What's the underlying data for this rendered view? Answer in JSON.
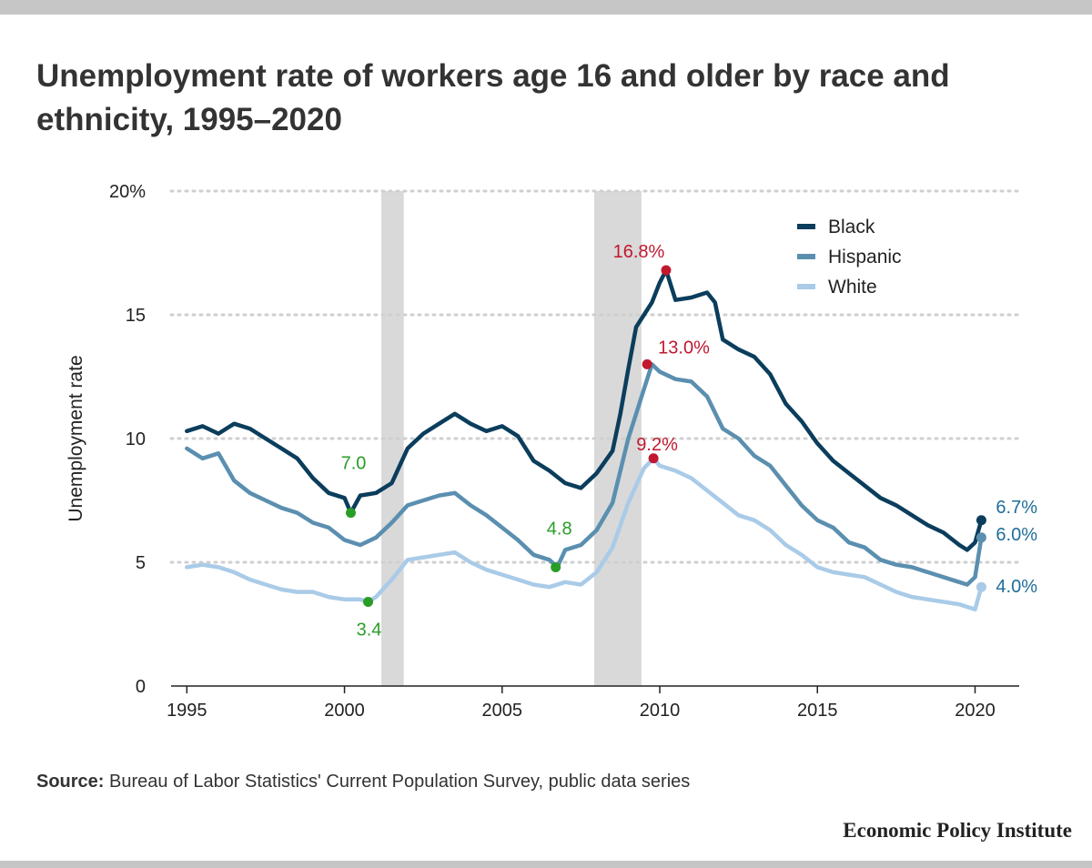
{
  "title": "Unemployment rate of workers age 16 and older by race and ethnicity, 1995–2020",
  "source": {
    "label": "Source:",
    "text": "Bureau of Labor Statistics' Current Population Survey, public data series"
  },
  "brand": "Economic Policy Institute",
  "colors": {
    "black": "#0b3d5c",
    "hispanic": "#5b8fb0",
    "white": "#a9cbe8",
    "recession": "#d9d9d9",
    "peak": "#c0182e",
    "trough": "#2a9d27",
    "end": "#1f6d99"
  },
  "chart_data": {
    "type": "line",
    "ylabel": "Unemployment rate",
    "xlabel": "",
    "ylim": [
      0,
      20
    ],
    "xlim": [
      1994.5,
      2021.4
    ],
    "yticks": [
      {
        "value": 0,
        "label": "0"
      },
      {
        "value": 5,
        "label": "5"
      },
      {
        "value": 10,
        "label": "10"
      },
      {
        "value": 15,
        "label": "15"
      },
      {
        "value": 20,
        "label": "20%"
      }
    ],
    "xticks": [
      {
        "value": 1995,
        "label": "1995"
      },
      {
        "value": 2000,
        "label": "2000"
      },
      {
        "value": 2005,
        "label": "2005"
      },
      {
        "value": 2010,
        "label": "2010"
      },
      {
        "value": 2015,
        "label": "2015"
      },
      {
        "value": 2020,
        "label": "2020"
      }
    ],
    "legend_position": "top-right",
    "grid": "horizontal-dotted",
    "recessions": [
      [
        2001.17,
        2001.88
      ],
      [
        2007.92,
        2009.42
      ]
    ],
    "series": [
      {
        "name": "Black",
        "points": [
          [
            1995.0,
            10.3
          ],
          [
            1995.5,
            10.5
          ],
          [
            1996.0,
            10.2
          ],
          [
            1996.5,
            10.6
          ],
          [
            1997.0,
            10.4
          ],
          [
            1997.5,
            10.0
          ],
          [
            1998.0,
            9.6
          ],
          [
            1998.5,
            9.2
          ],
          [
            1999.0,
            8.4
          ],
          [
            1999.5,
            7.8
          ],
          [
            2000.0,
            7.6
          ],
          [
            2000.2,
            7.0
          ],
          [
            2000.5,
            7.7
          ],
          [
            2001.0,
            7.8
          ],
          [
            2001.5,
            8.2
          ],
          [
            2002.0,
            9.6
          ],
          [
            2002.5,
            10.2
          ],
          [
            2003.0,
            10.6
          ],
          [
            2003.5,
            11.0
          ],
          [
            2004.0,
            10.6
          ],
          [
            2004.5,
            10.3
          ],
          [
            2005.0,
            10.5
          ],
          [
            2005.5,
            10.1
          ],
          [
            2006.0,
            9.1
          ],
          [
            2006.5,
            8.7
          ],
          [
            2007.0,
            8.2
          ],
          [
            2007.5,
            8.0
          ],
          [
            2008.0,
            8.6
          ],
          [
            2008.5,
            9.5
          ],
          [
            2008.75,
            11.0
          ],
          [
            2009.0,
            12.8
          ],
          [
            2009.25,
            14.5
          ],
          [
            2009.5,
            15.0
          ],
          [
            2009.75,
            15.5
          ],
          [
            2010.0,
            16.3
          ],
          [
            2010.2,
            16.8
          ],
          [
            2010.5,
            15.6
          ],
          [
            2011.0,
            15.7
          ],
          [
            2011.5,
            15.9
          ],
          [
            2011.75,
            15.5
          ],
          [
            2012.0,
            14.0
          ],
          [
            2012.5,
            13.6
          ],
          [
            2013.0,
            13.3
          ],
          [
            2013.5,
            12.6
          ],
          [
            2014.0,
            11.4
          ],
          [
            2014.5,
            10.7
          ],
          [
            2015.0,
            9.8
          ],
          [
            2015.5,
            9.1
          ],
          [
            2016.0,
            8.6
          ],
          [
            2016.5,
            8.1
          ],
          [
            2017.0,
            7.6
          ],
          [
            2017.5,
            7.3
          ],
          [
            2018.0,
            6.9
          ],
          [
            2018.5,
            6.5
          ],
          [
            2019.0,
            6.2
          ],
          [
            2019.5,
            5.7
          ],
          [
            2019.75,
            5.5
          ],
          [
            2020.0,
            5.8
          ],
          [
            2020.2,
            6.7
          ]
        ]
      },
      {
        "name": "Hispanic",
        "points": [
          [
            1995.0,
            9.6
          ],
          [
            1995.5,
            9.2
          ],
          [
            1996.0,
            9.4
          ],
          [
            1996.5,
            8.3
          ],
          [
            1997.0,
            7.8
          ],
          [
            1997.5,
            7.5
          ],
          [
            1998.0,
            7.2
          ],
          [
            1998.5,
            7.0
          ],
          [
            1999.0,
            6.6
          ],
          [
            1999.5,
            6.4
          ],
          [
            2000.0,
            5.9
          ],
          [
            2000.5,
            5.7
          ],
          [
            2001.0,
            6.0
          ],
          [
            2001.5,
            6.6
          ],
          [
            2002.0,
            7.3
          ],
          [
            2002.5,
            7.5
          ],
          [
            2003.0,
            7.7
          ],
          [
            2003.5,
            7.8
          ],
          [
            2004.0,
            7.3
          ],
          [
            2004.5,
            6.9
          ],
          [
            2005.0,
            6.4
          ],
          [
            2005.5,
            5.9
          ],
          [
            2006.0,
            5.3
          ],
          [
            2006.5,
            5.1
          ],
          [
            2006.75,
            4.8
          ],
          [
            2007.0,
            5.5
          ],
          [
            2007.5,
            5.7
          ],
          [
            2008.0,
            6.3
          ],
          [
            2008.5,
            7.4
          ],
          [
            2009.0,
            10.0
          ],
          [
            2009.5,
            12.0
          ],
          [
            2009.75,
            13.0
          ],
          [
            2010.0,
            12.7
          ],
          [
            2010.5,
            12.4
          ],
          [
            2011.0,
            12.3
          ],
          [
            2011.5,
            11.7
          ],
          [
            2012.0,
            10.4
          ],
          [
            2012.5,
            10.0
          ],
          [
            2013.0,
            9.3
          ],
          [
            2013.5,
            8.9
          ],
          [
            2014.0,
            8.1
          ],
          [
            2014.5,
            7.3
          ],
          [
            2015.0,
            6.7
          ],
          [
            2015.5,
            6.4
          ],
          [
            2016.0,
            5.8
          ],
          [
            2016.5,
            5.6
          ],
          [
            2017.0,
            5.1
          ],
          [
            2017.5,
            4.9
          ],
          [
            2018.0,
            4.8
          ],
          [
            2018.5,
            4.6
          ],
          [
            2019.0,
            4.4
          ],
          [
            2019.5,
            4.2
          ],
          [
            2019.75,
            4.1
          ],
          [
            2020.0,
            4.4
          ],
          [
            2020.2,
            6.0
          ]
        ]
      },
      {
        "name": "White",
        "points": [
          [
            1995.0,
            4.8
          ],
          [
            1995.5,
            4.9
          ],
          [
            1996.0,
            4.8
          ],
          [
            1996.5,
            4.6
          ],
          [
            1997.0,
            4.3
          ],
          [
            1997.5,
            4.1
          ],
          [
            1998.0,
            3.9
          ],
          [
            1998.5,
            3.8
          ],
          [
            1999.0,
            3.8
          ],
          [
            1999.5,
            3.6
          ],
          [
            2000.0,
            3.5
          ],
          [
            2000.5,
            3.5
          ],
          [
            2000.75,
            3.4
          ],
          [
            2001.0,
            3.6
          ],
          [
            2001.5,
            4.3
          ],
          [
            2002.0,
            5.1
          ],
          [
            2002.5,
            5.2
          ],
          [
            2003.0,
            5.3
          ],
          [
            2003.5,
            5.4
          ],
          [
            2004.0,
            5.0
          ],
          [
            2004.5,
            4.7
          ],
          [
            2005.0,
            4.5
          ],
          [
            2005.5,
            4.3
          ],
          [
            2006.0,
            4.1
          ],
          [
            2006.5,
            4.0
          ],
          [
            2007.0,
            4.2
          ],
          [
            2007.5,
            4.1
          ],
          [
            2008.0,
            4.6
          ],
          [
            2008.5,
            5.6
          ],
          [
            2009.0,
            7.4
          ],
          [
            2009.5,
            8.8
          ],
          [
            2009.8,
            9.2
          ],
          [
            2010.0,
            8.9
          ],
          [
            2010.5,
            8.7
          ],
          [
            2011.0,
            8.4
          ],
          [
            2011.5,
            7.9
          ],
          [
            2012.0,
            7.4
          ],
          [
            2012.5,
            6.9
          ],
          [
            2013.0,
            6.7
          ],
          [
            2013.5,
            6.3
          ],
          [
            2014.0,
            5.7
          ],
          [
            2014.5,
            5.3
          ],
          [
            2015.0,
            4.8
          ],
          [
            2015.5,
            4.6
          ],
          [
            2016.0,
            4.5
          ],
          [
            2016.5,
            4.4
          ],
          [
            2017.0,
            4.1
          ],
          [
            2017.5,
            3.8
          ],
          [
            2018.0,
            3.6
          ],
          [
            2018.5,
            3.5
          ],
          [
            2019.0,
            3.4
          ],
          [
            2019.5,
            3.3
          ],
          [
            2019.75,
            3.2
          ],
          [
            2020.0,
            3.1
          ],
          [
            2020.2,
            4.0
          ]
        ]
      }
    ],
    "annotations": [
      {
        "x": 2010.2,
        "y": 16.8,
        "label": "16.8%",
        "kind": "peak"
      },
      {
        "x": 2009.6,
        "y": 13.0,
        "label": "13.0%",
        "kind": "peak"
      },
      {
        "x": 2009.8,
        "y": 9.2,
        "label": "9.2%",
        "kind": "peak"
      },
      {
        "x": 2000.2,
        "y": 7.0,
        "label": "7.0",
        "kind": "trough"
      },
      {
        "x": 2000.75,
        "y": 3.4,
        "label": "3.4",
        "kind": "trough"
      },
      {
        "x": 2006.7,
        "y": 4.8,
        "label": "4.8",
        "kind": "trough"
      },
      {
        "x": 2020.2,
        "y": 6.7,
        "label": "6.7%",
        "kind": "end"
      },
      {
        "x": 2020.2,
        "y": 6.0,
        "label": "6.0%",
        "kind": "end"
      },
      {
        "x": 2020.2,
        "y": 4.0,
        "label": "4.0%",
        "kind": "end"
      }
    ]
  }
}
